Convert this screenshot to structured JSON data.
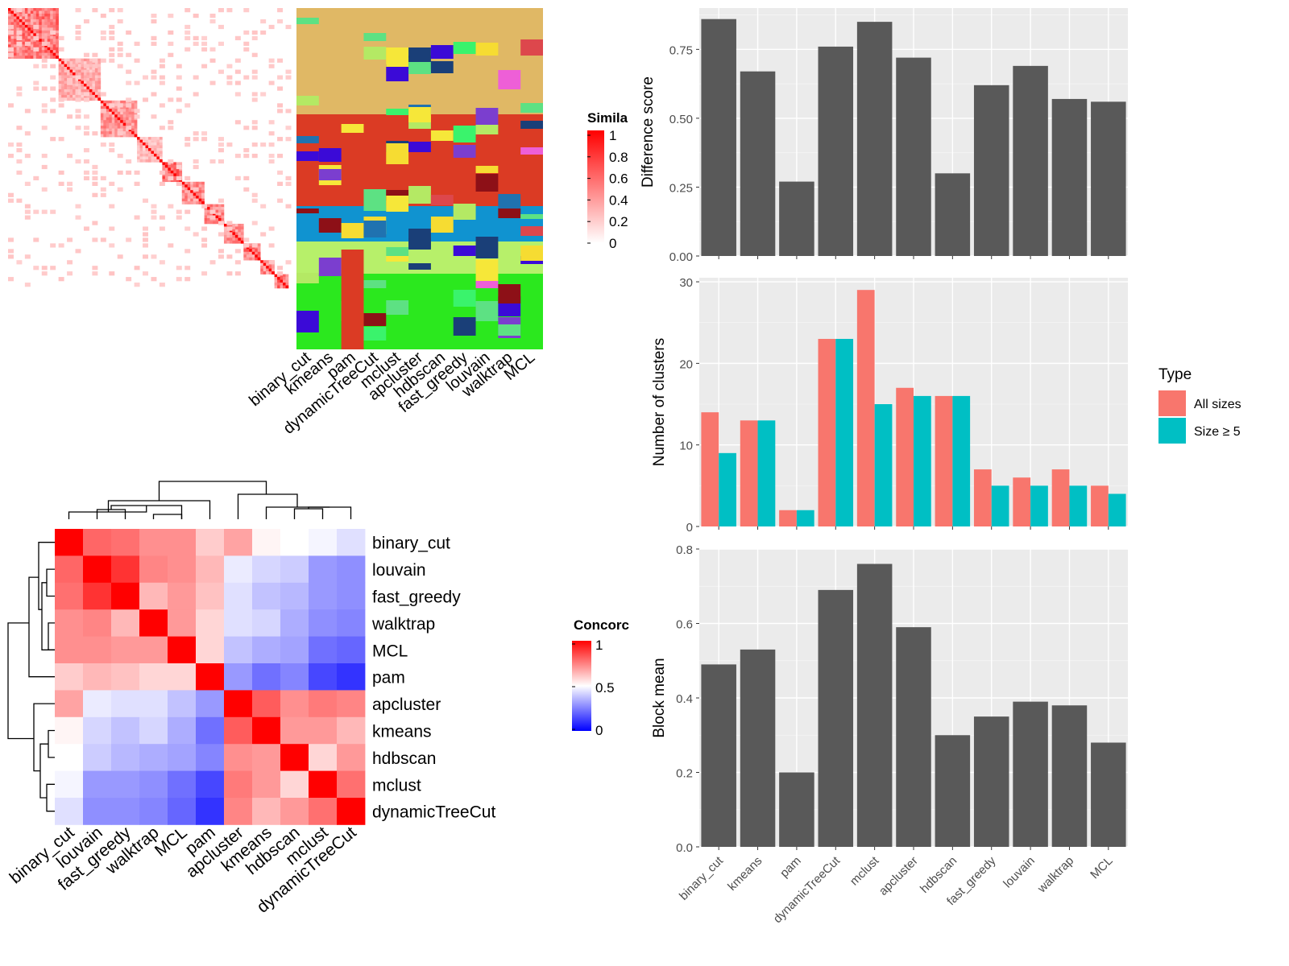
{
  "methods": [
    "binary_cut",
    "kmeans",
    "pam",
    "dynamicTreeCut",
    "mclust",
    "apcluster",
    "hdbscan",
    "fast_greedy",
    "louvain",
    "walktrap",
    "MCL"
  ],
  "similarity_heatmap": {
    "legend_title": "Simila",
    "legend_ticks": [
      "1",
      "0.8",
      "0.6",
      "0.4",
      "0.2",
      "0"
    ]
  },
  "concordance_heatmap": {
    "legend_title": "Concorc",
    "legend_ticks": [
      "1",
      "0.5",
      "0"
    ],
    "order": [
      "binary_cut",
      "louvain",
      "fast_greedy",
      "walktrap",
      "MCL",
      "pam",
      "apcluster",
      "kmeans",
      "hdbscan",
      "mclust",
      "dynamicTreeCut"
    ],
    "matrix": [
      [
        1.0,
        0.8,
        0.78,
        0.72,
        0.72,
        0.6,
        0.68,
        0.52,
        0.5,
        0.48,
        0.44
      ],
      [
        0.8,
        1.0,
        0.9,
        0.74,
        0.72,
        0.64,
        0.46,
        0.42,
        0.4,
        0.3,
        0.28
      ],
      [
        0.78,
        0.9,
        1.0,
        0.64,
        0.7,
        0.62,
        0.44,
        0.38,
        0.36,
        0.3,
        0.28
      ],
      [
        0.72,
        0.74,
        0.64,
        1.0,
        0.7,
        0.58,
        0.44,
        0.42,
        0.34,
        0.28,
        0.26
      ],
      [
        0.72,
        0.72,
        0.7,
        0.7,
        1.0,
        0.58,
        0.38,
        0.34,
        0.32,
        0.22,
        0.2
      ],
      [
        0.6,
        0.64,
        0.62,
        0.58,
        0.58,
        1.0,
        0.3,
        0.22,
        0.26,
        0.14,
        0.1
      ],
      [
        0.68,
        0.46,
        0.44,
        0.44,
        0.38,
        0.3,
        1.0,
        0.82,
        0.72,
        0.76,
        0.74
      ],
      [
        0.52,
        0.42,
        0.38,
        0.42,
        0.34,
        0.22,
        0.82,
        1.0,
        0.7,
        0.7,
        0.64
      ],
      [
        0.5,
        0.4,
        0.36,
        0.34,
        0.32,
        0.26,
        0.72,
        0.7,
        1.0,
        0.58,
        0.7
      ],
      [
        0.48,
        0.3,
        0.3,
        0.28,
        0.22,
        0.14,
        0.76,
        0.7,
        0.58,
        1.0,
        0.78
      ],
      [
        0.44,
        0.28,
        0.28,
        0.26,
        0.2,
        0.1,
        0.74,
        0.64,
        0.7,
        0.78,
        1.0
      ]
    ]
  },
  "chart_data": [
    {
      "type": "bar",
      "categories": [
        "binary_cut",
        "kmeans",
        "pam",
        "dynamicTreeCut",
        "mclust",
        "apcluster",
        "hdbscan",
        "fast_greedy",
        "louvain",
        "walktrap",
        "MCL"
      ],
      "values": [
        0.86,
        0.67,
        0.27,
        0.76,
        0.85,
        0.72,
        0.3,
        0.62,
        0.69,
        0.57,
        0.56
      ],
      "ylabel": "Difference score",
      "ylim": [
        0,
        0.9
      ],
      "yticks": [
        "0.00",
        "0.25",
        "0.50",
        "0.75"
      ],
      "grid": true
    },
    {
      "type": "bar",
      "categories": [
        "binary_cut",
        "kmeans",
        "pam",
        "dynamicTreeCut",
        "mclust",
        "apcluster",
        "hdbscan",
        "fast_greedy",
        "louvain",
        "walktrap",
        "MCL"
      ],
      "series": [
        {
          "name": "All sizes",
          "values": [
            14,
            13,
            2,
            23,
            29,
            17,
            16,
            7,
            6,
            7,
            5
          ],
          "color": "#F8766D"
        },
        {
          "name": "Size ≥ 5",
          "values": [
            9,
            13,
            2,
            23,
            15,
            16,
            16,
            5,
            5,
            5,
            4
          ],
          "color": "#00BFC4"
        }
      ],
      "ylabel": "Number of clusters",
      "ylim": [
        0,
        30.5
      ],
      "yticks": [
        "0",
        "10",
        "20",
        "30"
      ],
      "legend_title": "Type",
      "legend_position": "right",
      "grid": true
    },
    {
      "type": "bar",
      "categories": [
        "binary_cut",
        "kmeans",
        "pam",
        "dynamicTreeCut",
        "mclust",
        "apcluster",
        "hdbscan",
        "fast_greedy",
        "louvain",
        "walktrap",
        "MCL"
      ],
      "values": [
        0.49,
        0.53,
        0.2,
        0.69,
        0.76,
        0.59,
        0.3,
        0.35,
        0.39,
        0.38,
        0.28
      ],
      "ylabel": "Block mean",
      "ylim": [
        0,
        0.8
      ],
      "yticks": [
        "0.0",
        "0.2",
        "0.4",
        "0.6",
        "0.8"
      ],
      "grid": true
    }
  ]
}
